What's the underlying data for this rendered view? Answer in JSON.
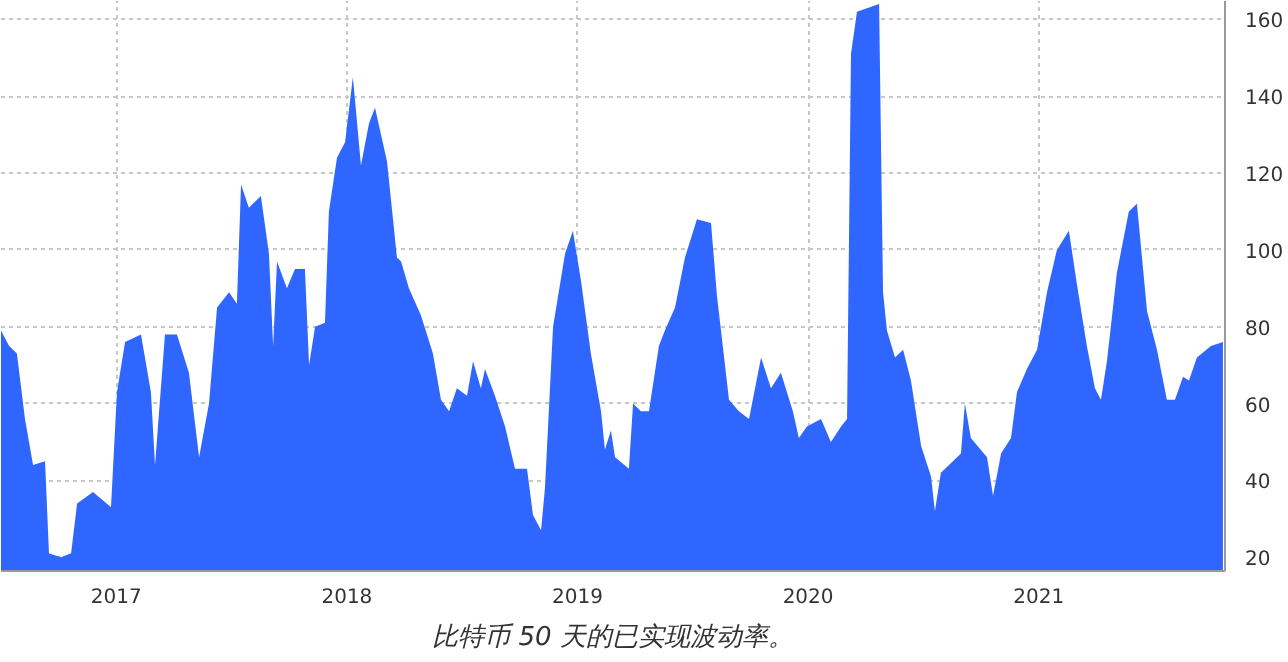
{
  "chart_data": {
    "type": "area",
    "title": "比特币 50 天的已实现波动率。",
    "x": [
      2016.5,
      2016.535,
      2016.569,
      2016.604,
      2016.639,
      2016.691,
      2016.708,
      2016.76,
      2016.804,
      2016.83,
      2016.899,
      2016.977,
      2017.003,
      2017.038,
      2017.107,
      2017.15,
      2017.168,
      2017.211,
      2017.263,
      2017.315,
      2017.359,
      2017.402,
      2017.437,
      2017.489,
      2017.523,
      2017.541,
      2017.575,
      2017.627,
      2017.662,
      2017.68,
      2017.697,
      2017.74,
      2017.775,
      2017.818,
      2017.836,
      2017.862,
      2017.905,
      2017.922,
      2017.957,
      2017.992,
      2018.026,
      2018.061,
      2018.096,
      2018.122,
      2018.174,
      2018.217,
      2018.235,
      2018.269,
      2018.321,
      2018.373,
      2018.408,
      2018.443,
      2018.477,
      2018.521,
      2018.547,
      2018.581,
      2018.599,
      2018.642,
      2018.686,
      2018.729,
      2018.781,
      2018.807,
      2018.842,
      2018.859,
      2018.894,
      2018.946,
      2018.98,
      2019.015,
      2019.058,
      2019.102,
      2019.119,
      2019.145,
      2019.163,
      2019.223,
      2019.241,
      2019.275,
      2019.31,
      2019.353,
      2019.379,
      2019.423,
      2019.466,
      2019.518,
      2019.579,
      2019.605,
      2019.657,
      2019.7,
      2019.744,
      2019.796,
      2019.839,
      2019.882,
      2019.934,
      2019.96,
      2019.995,
      2020.056,
      2020.099,
      2020.143,
      2020.169,
      2020.186,
      2020.212,
      2020.308,
      2020.325,
      2020.342,
      2020.377,
      2020.412,
      2020.446,
      2020.49,
      2020.533,
      2020.55,
      2020.576,
      2020.663,
      2020.68,
      2020.706,
      2020.776,
      2020.802,
      2020.837,
      2020.88,
      2020.906,
      2020.949,
      2020.993,
      2021.036,
      2021.079,
      2021.131,
      2021.166,
      2021.209,
      2021.244,
      2021.27,
      2021.296,
      2021.339,
      2021.391,
      2021.426,
      2021.47,
      2021.513,
      2021.556,
      2021.591,
      2021.626,
      2021.652,
      2021.686,
      2021.747,
      2021.799
    ],
    "series": [
      {
        "color": "#2f66ff",
        "values": [
          79,
          75,
          73,
          56,
          44,
          45,
          21,
          20,
          21,
          34,
          37,
          33,
          63,
          76,
          78,
          63,
          44,
          78,
          78,
          68,
          46,
          60,
          85,
          89,
          86,
          117,
          111,
          114,
          99,
          75,
          97,
          90,
          95,
          95,
          70,
          80,
          81,
          110,
          124,
          128,
          145,
          122,
          133,
          137,
          123,
          98,
          97,
          90,
          83,
          73,
          61,
          58,
          64,
          62,
          71,
          64,
          69,
          62,
          54,
          43,
          43,
          31,
          27,
          38,
          80,
          99,
          105,
          92,
          73,
          58,
          48,
          53,
          46,
          43,
          60,
          58,
          58,
          75,
          79,
          85,
          98,
          108,
          107,
          88,
          61,
          58,
          56,
          72,
          64,
          68,
          58,
          51,
          54,
          56,
          50,
          54,
          56,
          151,
          162,
          164,
          89,
          79,
          72,
          74,
          66,
          49,
          41,
          32,
          42,
          47,
          60,
          51,
          46,
          36,
          47,
          51,
          63,
          69,
          74,
          89,
          100,
          105,
          91,
          75,
          64,
          61,
          71,
          94,
          110,
          112,
          84,
          74,
          61,
          61,
          67,
          66,
          72,
          75,
          76
        ]
      }
    ],
    "xlim": [
      2016.5,
      2021.808
    ],
    "ylim": [
      16.4,
      164.8
    ],
    "xticks": [
      {
        "value": 2017,
        "label": "2017"
      },
      {
        "value": 2018,
        "label": "2018"
      },
      {
        "value": 2019,
        "label": "2019"
      },
      {
        "value": 2020,
        "label": "2020"
      },
      {
        "value": 2021,
        "label": "2021"
      }
    ],
    "yticks": [
      20,
      40,
      60,
      80,
      100,
      120,
      140,
      160
    ],
    "grid": true
  }
}
